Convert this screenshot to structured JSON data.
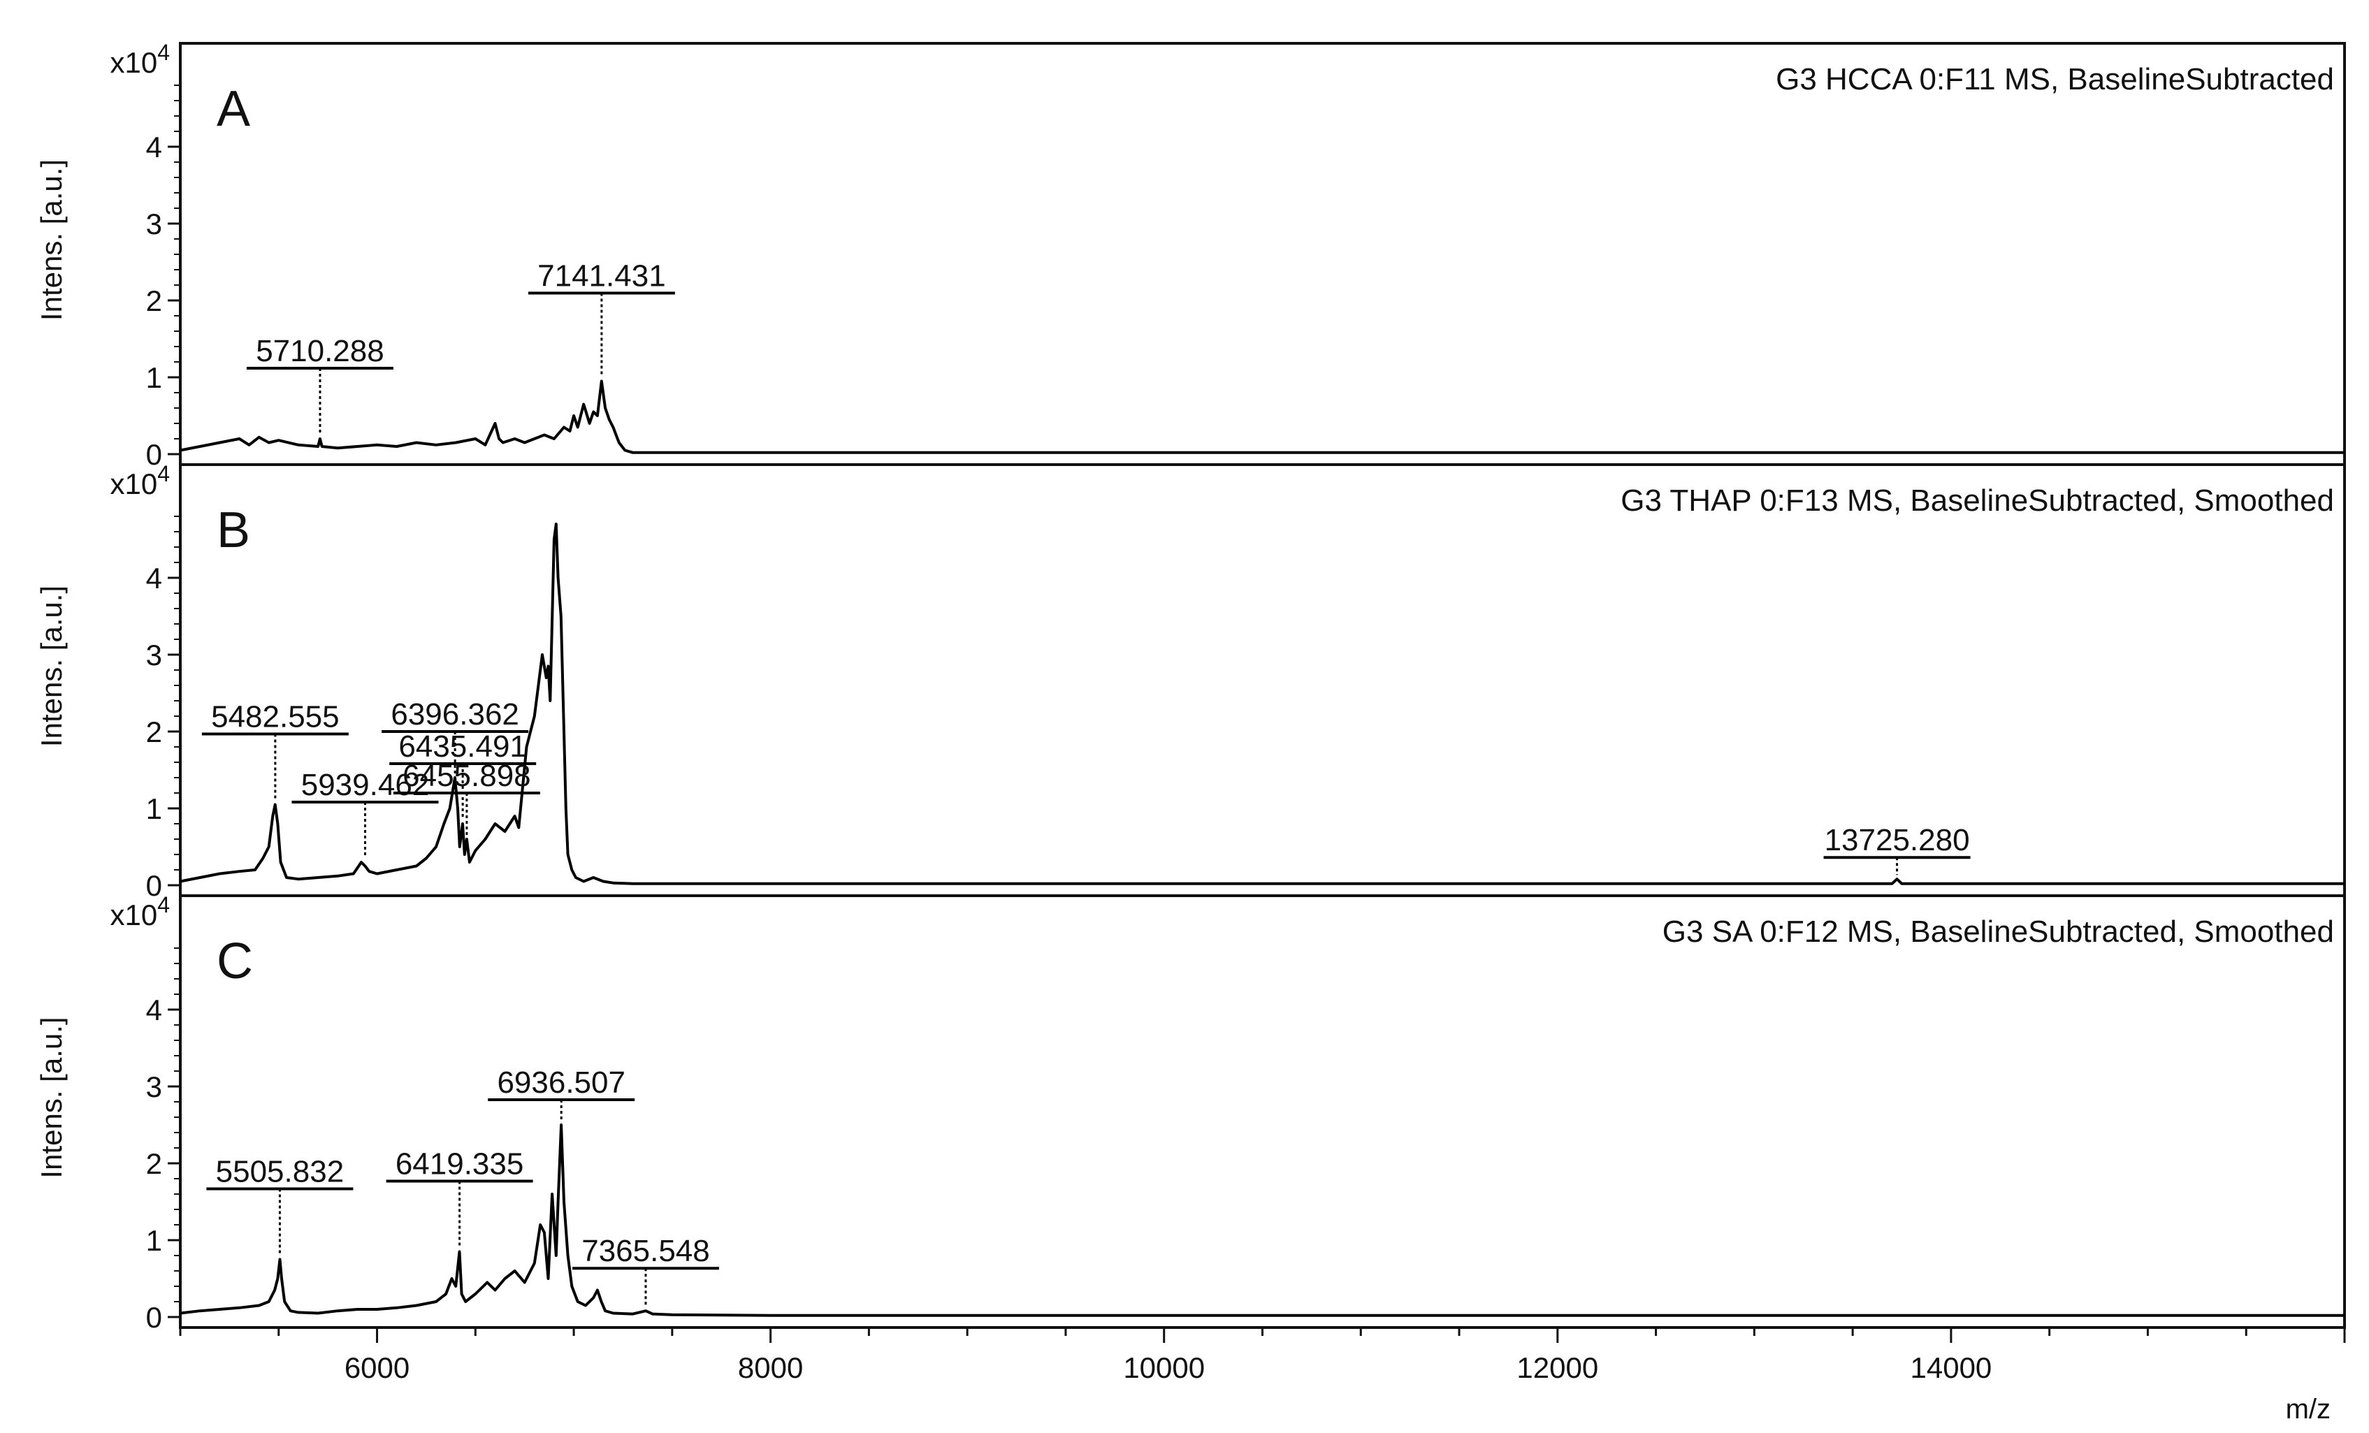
{
  "figure": {
    "x_axis_label": "m/z",
    "x_ticks": [
      "6000",
      "8000",
      "10000",
      "12000",
      "14000"
    ],
    "y_axis_label": "Intens. [a.u.]",
    "y_exponent_base": "x10",
    "y_exponent_power": "4",
    "y_ticks": [
      "0",
      "1",
      "2",
      "3",
      "4"
    ]
  },
  "chart_data": [
    {
      "type": "line",
      "panel_label": "A",
      "title": "G3  HCCA 0:F11 MS, BaselineSubtracted",
      "xlabel": "m/z",
      "ylabel": "Intens. [a.u.]",
      "xlim": [
        5000,
        16000
      ],
      "ylim": [
        0,
        5.0
      ],
      "y_multiplier": "x10^4",
      "series": [
        {
          "x": [
            5000,
            5100,
            5200,
            5300,
            5350,
            5400,
            5450,
            5500,
            5600,
            5700,
            5710,
            5720,
            5800,
            5900,
            6000,
            6100,
            6200,
            6300,
            6400,
            6500,
            6550,
            6600,
            6620,
            6640,
            6700,
            6750,
            6800,
            6850,
            6900,
            6950,
            6980,
            7000,
            7020,
            7050,
            7080,
            7100,
            7120,
            7141,
            7160,
            7180,
            7200,
            7230,
            7260,
            7300,
            7500,
            8000,
            9000,
            10000,
            11000,
            12000,
            13000,
            14000,
            15000,
            16000
          ],
          "y": [
            0.05,
            0.1,
            0.15,
            0.2,
            0.12,
            0.22,
            0.15,
            0.18,
            0.12,
            0.1,
            0.2,
            0.1,
            0.08,
            0.1,
            0.12,
            0.1,
            0.15,
            0.12,
            0.15,
            0.2,
            0.12,
            0.4,
            0.2,
            0.15,
            0.2,
            0.15,
            0.2,
            0.25,
            0.2,
            0.35,
            0.3,
            0.5,
            0.35,
            0.65,
            0.4,
            0.55,
            0.5,
            0.95,
            0.6,
            0.45,
            0.35,
            0.15,
            0.05,
            0.02,
            0.02,
            0.02,
            0.02,
            0.02,
            0.02,
            0.02,
            0.02,
            0.02,
            0.02,
            0.02
          ]
        }
      ],
      "annotations": [
        {
          "label": "5710.288",
          "x": 5710.288,
          "y": 0.2
        },
        {
          "label": "7141.431",
          "x": 7141.431,
          "y": 0.95
        }
      ]
    },
    {
      "type": "line",
      "panel_label": "B",
      "title": "G3 THAP 0:F13 MS, BaselineSubtracted, Smoothed",
      "xlabel": "m/z",
      "ylabel": "Intens. [a.u.]",
      "xlim": [
        5000,
        16000
      ],
      "ylim": [
        0,
        5.0
      ],
      "y_multiplier": "x10^4",
      "series": [
        {
          "x": [
            5000,
            5100,
            5200,
            5300,
            5380,
            5420,
            5450,
            5470,
            5482,
            5495,
            5510,
            5540,
            5600,
            5700,
            5800,
            5880,
            5920,
            5939,
            5960,
            6000,
            6100,
            6200,
            6250,
            6300,
            6340,
            6370,
            6396,
            6410,
            6420,
            6435,
            6445,
            6456,
            6470,
            6500,
            6550,
            6600,
            6650,
            6700,
            6720,
            6760,
            6800,
            6820,
            6840,
            6860,
            6870,
            6880,
            6900,
            6910,
            6920,
            6935,
            6950,
            6960,
            6970,
            6990,
            7010,
            7050,
            7100,
            7150,
            7200,
            7300,
            8000,
            9000,
            10000,
            11000,
            12000,
            13000,
            13700,
            13725,
            13750,
            14000,
            15000,
            16000
          ],
          "y": [
            0.05,
            0.1,
            0.15,
            0.18,
            0.2,
            0.35,
            0.5,
            0.9,
            1.05,
            0.8,
            0.3,
            0.1,
            0.08,
            0.1,
            0.12,
            0.15,
            0.3,
            0.25,
            0.18,
            0.15,
            0.2,
            0.25,
            0.35,
            0.5,
            0.8,
            1.0,
            1.4,
            1.0,
            0.5,
            0.8,
            0.4,
            0.6,
            0.3,
            0.45,
            0.6,
            0.8,
            0.7,
            0.9,
            0.75,
            1.8,
            2.2,
            2.6,
            3.0,
            2.7,
            2.85,
            2.4,
            4.5,
            4.7,
            4.0,
            3.5,
            2.0,
            1.0,
            0.4,
            0.2,
            0.1,
            0.05,
            0.1,
            0.05,
            0.03,
            0.02,
            0.02,
            0.02,
            0.02,
            0.02,
            0.02,
            0.02,
            0.02,
            0.08,
            0.02,
            0.02,
            0.02,
            0.02
          ]
        }
      ],
      "annotations": [
        {
          "label": "5482.555",
          "x": 5482.555,
          "y": 1.05
        },
        {
          "label": "5939.462",
          "x": 5939.462,
          "y": 0.3
        },
        {
          "label": "6396.362",
          "x": 6396.362,
          "y": 1.4
        },
        {
          "label": "6435.491",
          "x": 6435.491,
          "y": 0.8
        },
        {
          "label": "6455.898",
          "x": 6455.898,
          "y": 0.6
        },
        {
          "label": "13725.280",
          "x": 13725.28,
          "y": 0.08
        }
      ]
    },
    {
      "type": "line",
      "panel_label": "C",
      "title": "G3 SA 0:F12 MS, BaselineSubtracted, Smoothed",
      "xlabel": "m/z",
      "ylabel": "Intens. [a.u.]",
      "xlim": [
        5000,
        16000
      ],
      "ylim": [
        0,
        5.0
      ],
      "y_multiplier": "x10^4",
      "series": [
        {
          "x": [
            5000,
            5100,
            5200,
            5300,
            5400,
            5450,
            5480,
            5495,
            5506,
            5515,
            5530,
            5560,
            5600,
            5700,
            5800,
            5900,
            6000,
            6100,
            6200,
            6300,
            6350,
            6380,
            6400,
            6419,
            6430,
            6450,
            6500,
            6560,
            6600,
            6650,
            6700,
            6750,
            6800,
            6830,
            6850,
            6870,
            6890,
            6910,
            6920,
            6936,
            6950,
            6970,
            6990,
            7020,
            7060,
            7100,
            7120,
            7140,
            7160,
            7200,
            7300,
            7366,
            7400,
            7500,
            8000,
            9000,
            10000,
            11000,
            12000,
            13000,
            14000,
            15000,
            16000
          ],
          "y": [
            0.05,
            0.08,
            0.1,
            0.12,
            0.15,
            0.2,
            0.35,
            0.5,
            0.75,
            0.5,
            0.2,
            0.08,
            0.06,
            0.05,
            0.08,
            0.1,
            0.1,
            0.12,
            0.15,
            0.2,
            0.3,
            0.5,
            0.4,
            0.85,
            0.3,
            0.2,
            0.3,
            0.45,
            0.35,
            0.5,
            0.6,
            0.45,
            0.7,
            1.2,
            1.1,
            0.5,
            1.6,
            0.8,
            1.5,
            2.5,
            1.5,
            0.8,
            0.4,
            0.2,
            0.15,
            0.25,
            0.35,
            0.2,
            0.08,
            0.05,
            0.04,
            0.08,
            0.04,
            0.03,
            0.02,
            0.02,
            0.02,
            0.02,
            0.02,
            0.02,
            0.02,
            0.02,
            0.02
          ]
        }
      ],
      "annotations": [
        {
          "label": "5505.832",
          "x": 5505.832,
          "y": 0.75
        },
        {
          "label": "6419.335",
          "x": 6419.335,
          "y": 0.85
        },
        {
          "label": "6936.507",
          "x": 6936.507,
          "y": 2.5
        },
        {
          "label": "7365.548",
          "x": 7365.548,
          "y": 0.08
        }
      ]
    }
  ]
}
